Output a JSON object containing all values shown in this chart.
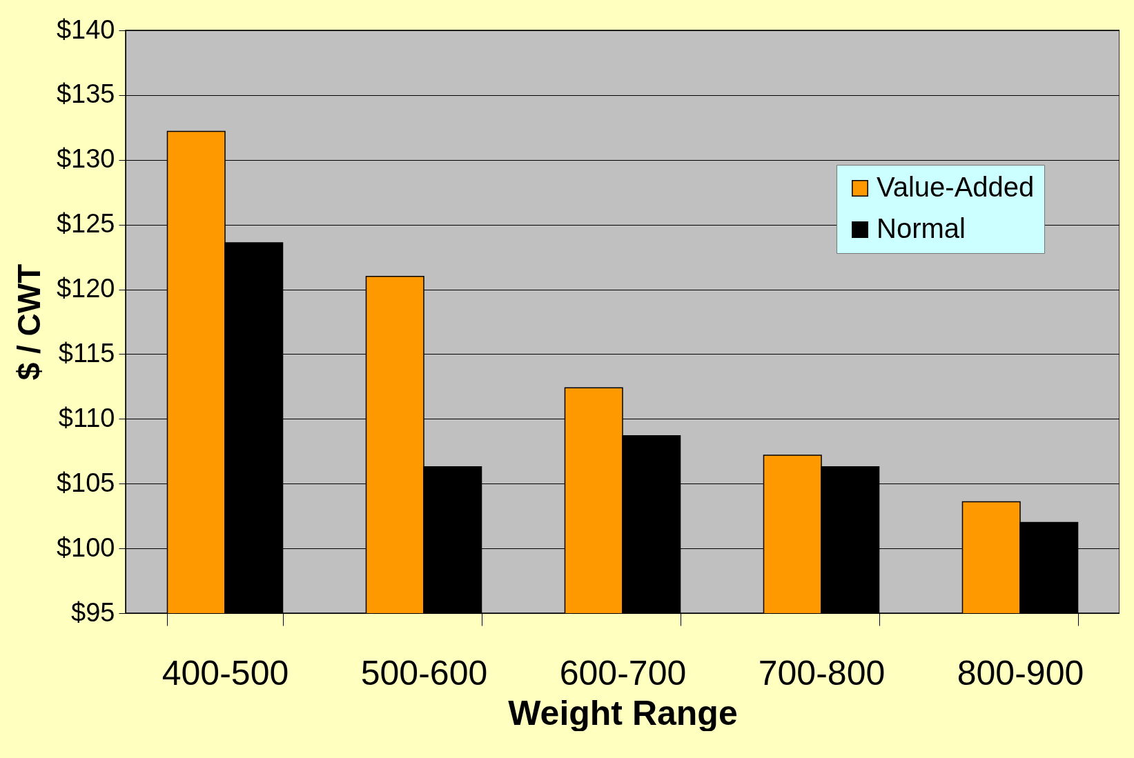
{
  "chart_data": {
    "type": "bar",
    "xlabel": "Weight Range",
    "ylabel": "$ / CWT",
    "categories": [
      "400-500",
      "500-600",
      "600-700",
      "700-800",
      "800-900"
    ],
    "series": [
      {
        "name": "Value-Added",
        "color": "#ff9900",
        "values": [
          132.2,
          121.0,
          112.4,
          107.2,
          103.6
        ]
      },
      {
        "name": "Normal",
        "color": "#000000",
        "values": [
          123.6,
          106.3,
          108.7,
          106.3,
          102.0
        ]
      }
    ],
    "ylim": [
      95,
      140
    ],
    "yticks": [
      {
        "value": 95,
        "label": "$95"
      },
      {
        "value": 100,
        "label": "$100"
      },
      {
        "value": 105,
        "label": "$105"
      },
      {
        "value": 110,
        "label": "$110"
      },
      {
        "value": 115,
        "label": "$115"
      },
      {
        "value": 120,
        "label": "$120"
      },
      {
        "value": 125,
        "label": "$125"
      },
      {
        "value": 130,
        "label": "$130"
      },
      {
        "value": 135,
        "label": "$135"
      },
      {
        "value": 140,
        "label": "$140"
      }
    ],
    "grid": "y",
    "legend": "top right"
  }
}
